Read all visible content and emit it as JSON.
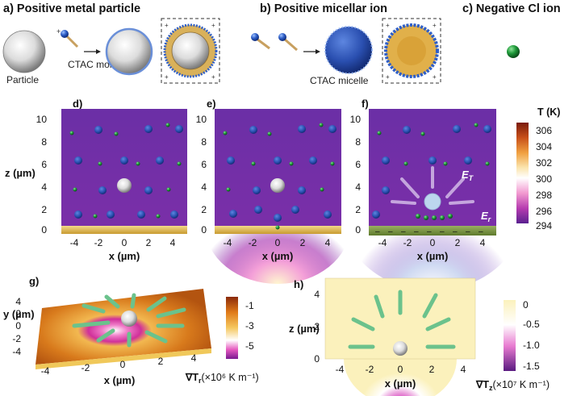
{
  "panel_a": {
    "title": "a) Positive metal particle",
    "particle_label": "Particle",
    "molecule_label": "CTAC molecule"
  },
  "panel_b": {
    "title": "b) Positive micellar ion",
    "micelle_label": "CTAC micelle"
  },
  "panel_c": {
    "title": "c) Negative Cl ion"
  },
  "panels_def": {
    "labels": [
      "d)",
      "e)",
      "f)"
    ],
    "z_label": "z (µm)",
    "x_label": "x (µm)",
    "z_ticks": [
      "0",
      "2",
      "4",
      "6",
      "8",
      "10"
    ],
    "x_ticks": [
      "-4",
      "-2",
      "0",
      "2",
      "4"
    ],
    "field_T": "E",
    "field_T_sub": "T",
    "field_r": "E",
    "field_r_sub": "r"
  },
  "colorbar_T": {
    "title": "T (K)",
    "ticks": [
      "306",
      "304",
      "302",
      "300",
      "298",
      "296",
      "294"
    ]
  },
  "panel_g": {
    "label": "g)",
    "y_label": "y (µm)",
    "x_label": "x (µm)",
    "y_ticks": [
      "4",
      "2",
      "0",
      "-2",
      "-4"
    ],
    "x_ticks": [
      "-4",
      "-2",
      "0",
      "2",
      "4"
    ]
  },
  "colorbar_g": {
    "ticks": [
      "-1",
      "-3",
      "-5"
    ],
    "title": "∇T",
    "sub": "r",
    "unit": "(×10⁶ K m⁻¹)"
  },
  "panel_h": {
    "label": "h)",
    "z_label": "z (µm)",
    "x_label": "x (µm)",
    "z_ticks": [
      "0",
      "2",
      "4"
    ],
    "x_ticks": [
      "-4",
      "-2",
      "0",
      "2",
      "4"
    ]
  },
  "colorbar_h": {
    "ticks": [
      "0",
      "-0.5",
      "-1.0",
      "-1.5"
    ],
    "title": "∇T",
    "sub": "z",
    "unit": "(×10⁷ K m⁻¹)"
  }
}
